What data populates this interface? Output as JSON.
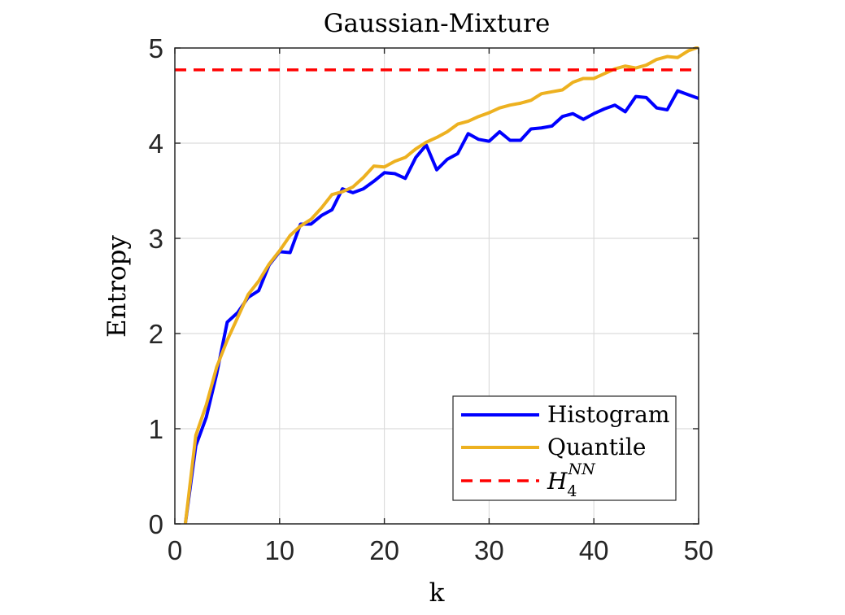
{
  "chart_data": {
    "type": "line",
    "title": "Gaussian-Mixture",
    "xlabel": "k",
    "ylabel": "Entropy",
    "xlim": [
      0,
      50
    ],
    "ylim": [
      0,
      5
    ],
    "xticks": [
      0,
      10,
      20,
      30,
      40,
      50
    ],
    "yticks": [
      0,
      1,
      2,
      3,
      4,
      5
    ],
    "grid": true,
    "legend_position": "bottom-right",
    "x": [
      1,
      2,
      3,
      4,
      5,
      6,
      7,
      8,
      9,
      10,
      11,
      12,
      13,
      14,
      15,
      16,
      17,
      18,
      19,
      20,
      21,
      22,
      23,
      24,
      25,
      26,
      27,
      28,
      29,
      30,
      31,
      32,
      33,
      34,
      35,
      36,
      37,
      38,
      39,
      40,
      41,
      42,
      43,
      44,
      45,
      46,
      47,
      48,
      49,
      50
    ],
    "series": [
      {
        "name": "Histogram",
        "color": "#0000ff",
        "dash": "solid",
        "values": [
          0,
          0.82,
          1.12,
          1.58,
          2.12,
          2.22,
          2.38,
          2.45,
          2.72,
          2.86,
          2.85,
          3.15,
          3.15,
          3.24,
          3.3,
          3.52,
          3.48,
          3.52,
          3.6,
          3.69,
          3.68,
          3.63,
          3.85,
          3.98,
          3.72,
          3.83,
          3.89,
          4.1,
          4.04,
          4.02,
          4.12,
          4.03,
          4.03,
          4.15,
          4.16,
          4.18,
          4.28,
          4.31,
          4.25,
          4.31,
          4.36,
          4.4,
          4.33,
          4.49,
          4.48,
          4.37,
          4.35,
          4.55,
          4.51,
          4.47
        ]
      },
      {
        "name": "Quantile",
        "color": "#edb120",
        "dash": "solid",
        "values": [
          0,
          0.93,
          1.25,
          1.65,
          1.93,
          2.17,
          2.41,
          2.55,
          2.73,
          2.87,
          3.03,
          3.13,
          3.2,
          3.32,
          3.46,
          3.49,
          3.54,
          3.64,
          3.76,
          3.75,
          3.81,
          3.85,
          3.94,
          4.01,
          4.06,
          4.12,
          4.2,
          4.23,
          4.28,
          4.32,
          4.37,
          4.4,
          4.42,
          4.45,
          4.52,
          4.54,
          4.56,
          4.64,
          4.68,
          4.68,
          4.73,
          4.78,
          4.81,
          4.79,
          4.82,
          4.88,
          4.91,
          4.9,
          4.97,
          5.01
        ]
      },
      {
        "name_parts": [
          "H",
          "4",
          "NN"
        ],
        "color": "#ff0000",
        "dash": "dashed",
        "constant": 4.77
      }
    ]
  }
}
